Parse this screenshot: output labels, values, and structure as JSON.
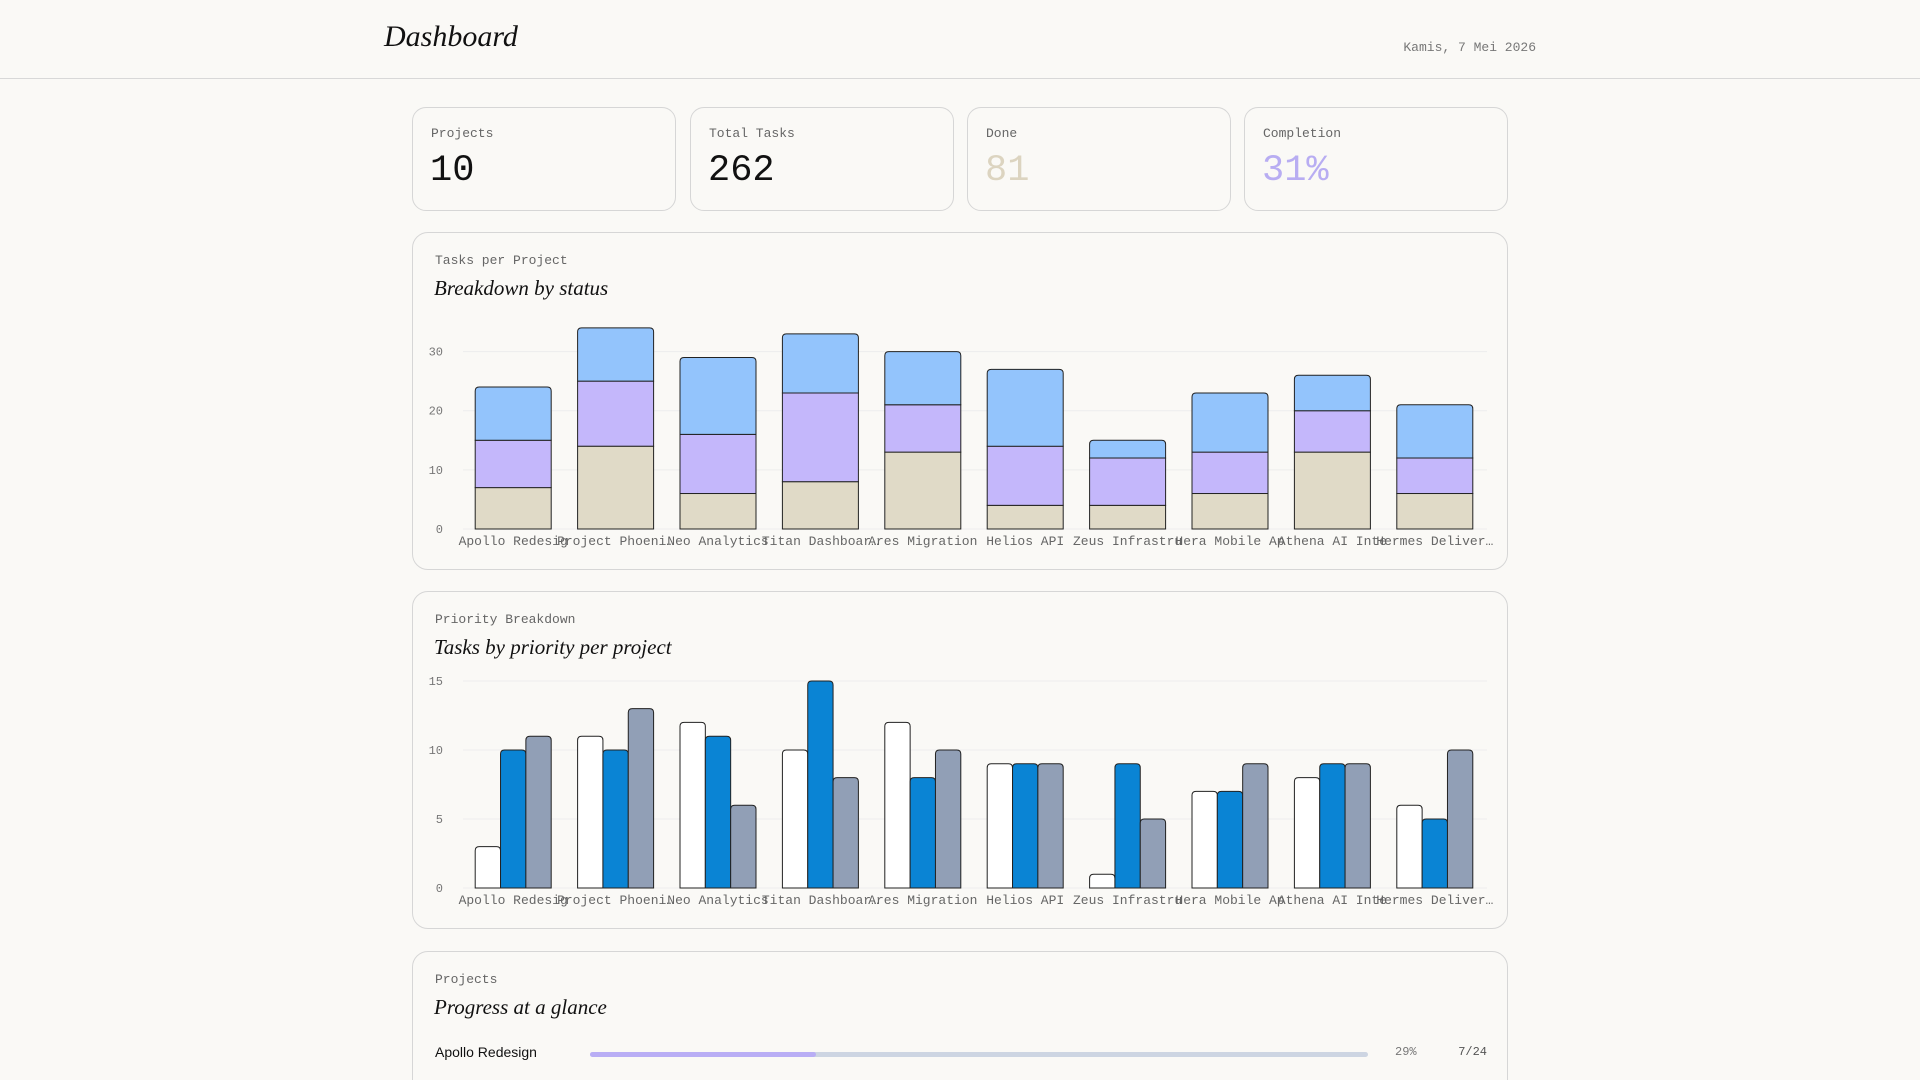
{
  "header": {
    "title": "Dashboard",
    "date": "Kamis, 7 Mei 2026"
  },
  "stats": [
    {
      "label": "Projects",
      "value": "10",
      "color": "#111111"
    },
    {
      "label": "Total Tasks",
      "value": "262",
      "color": "#111111"
    },
    {
      "label": "Done",
      "value": "81",
      "color": "#dcd4c0"
    },
    {
      "label": "Completion",
      "value": "31%",
      "color": "#b8adf2"
    }
  ],
  "status_chart": {
    "kicker": "Tasks per Project",
    "heading": "Breakdown by status"
  },
  "priority_chart": {
    "kicker": "Priority Breakdown",
    "heading": "Tasks by priority per project"
  },
  "progress": {
    "kicker": "Projects",
    "heading": "Progress at a glance",
    "rows": [
      {
        "name": "Apollo Redesign",
        "fraction": 0.29,
        "pct": "29%",
        "count": "7/24"
      }
    ]
  },
  "chart_data": [
    {
      "type": "bar",
      "stacked": true,
      "categories": [
        "Apollo Redesign",
        "Project Phoenix",
        "Neo Analytics",
        "Titan Dashboard",
        "Ares Migration",
        "Helios API",
        "Zeus Infrastructure",
        "Hera Mobile App",
        "Athena AI Integration",
        "Hermes Delivery"
      ],
      "tick_labels": [
        "Apollo Redesig",
        "Project Phoeni…",
        "Neo Analytics",
        "Titan Dashboar…",
        "Ares Migration",
        "Helios API",
        "Zeus Infrastru",
        "Hera Mobile Ap",
        "Athena AI Inte",
        "Hermes Deliver…"
      ],
      "series": [
        {
          "values": [
            7,
            14,
            6,
            8,
            13,
            4,
            4,
            6,
            13,
            6
          ],
          "color": "#e0dac7"
        },
        {
          "values": [
            8,
            11,
            10,
            15,
            8,
            10,
            8,
            7,
            7,
            6
          ],
          "color": "#c4b7fb"
        },
        {
          "values": [
            9,
            9,
            13,
            10,
            9,
            13,
            3,
            10,
            6,
            9
          ],
          "color": "#93c4fc"
        }
      ],
      "yticks": [
        0,
        10,
        20,
        30
      ],
      "ylim": [
        0,
        35
      ],
      "grid": true
    },
    {
      "type": "bar",
      "stacked": false,
      "categories": [
        "Apollo Redesign",
        "Project Phoenix",
        "Neo Analytics",
        "Titan Dashboard",
        "Ares Migration",
        "Helios API",
        "Zeus Infrastructure",
        "Hera Mobile App",
        "Athena AI Integration",
        "Hermes Delivery"
      ],
      "tick_labels": [
        "Apollo Redesig",
        "Project Phoeni…",
        "Neo Analytics",
        "Titan Dashboar…",
        "Ares Migration",
        "Helios API",
        "Zeus Infrastru",
        "Hera Mobile Ap",
        "Athena AI Inte",
        "Hermes Deliver…"
      ],
      "series": [
        {
          "values": [
            3,
            11,
            12,
            10,
            12,
            9,
            1,
            7,
            8,
            6
          ],
          "color": "#ffffff"
        },
        {
          "values": [
            10,
            10,
            11,
            15,
            8,
            9,
            9,
            7,
            9,
            5
          ],
          "color": "#0a84d4"
        },
        {
          "values": [
            11,
            13,
            6,
            8,
            10,
            9,
            5,
            9,
            9,
            10
          ],
          "color": "#919fb6"
        }
      ],
      "yticks": [
        0,
        5,
        10,
        15
      ],
      "ylim": [
        0,
        15
      ],
      "grid": true
    }
  ]
}
